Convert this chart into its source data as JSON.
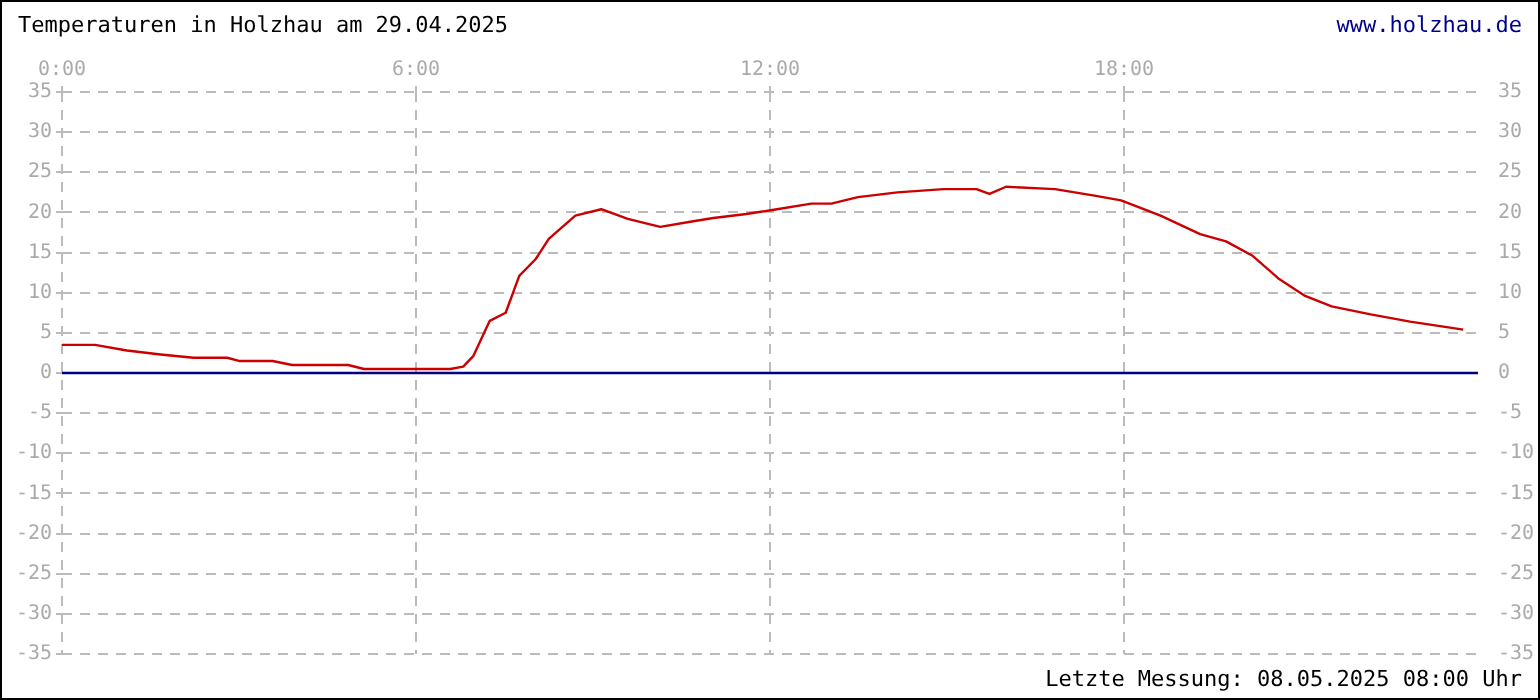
{
  "chart_data": {
    "type": "line",
    "title": "Temperaturen in Holzhau am 29.04.2025",
    "annotations": [
      "www.holzhau.de",
      "Letzte Messung: 08.05.2025 08:00 Uhr"
    ],
    "x": [
      0,
      0.56,
      1.1,
      1.67,
      2.23,
      2.8,
      3.0,
      3.57,
      3.9,
      4.85,
      5.12,
      6.58,
      6.8,
      6.97,
      7.25,
      7.52,
      7.75,
      8.03,
      8.25,
      8.7,
      9.14,
      9.59,
      10.14,
      10.7,
      11.04,
      11.6,
      12.04,
      12.7,
      13.04,
      13.49,
      14.16,
      14.94,
      15.5,
      15.72,
      16.0,
      16.83,
      17.5,
      17.95,
      18.62,
      19.29,
      19.73,
      20.18,
      20.63,
      21.07,
      21.52,
      22.18,
      22.85,
      23.3,
      23.75
    ],
    "series": [
      {
        "color": "#cc0000",
        "values": [
          3.5,
          3.5,
          2.8,
          2.3,
          1.9,
          1.9,
          1.5,
          1.5,
          1.0,
          1.0,
          0.5,
          0.5,
          0.8,
          2.1,
          6.5,
          7.5,
          12.1,
          14.2,
          16.7,
          19.6,
          20.4,
          19.2,
          18.2,
          18.9,
          19.3,
          19.8,
          20.3,
          21.1,
          21.1,
          21.9,
          22.5,
          22.9,
          22.9,
          22.3,
          23.2,
          22.9,
          22.1,
          21.5,
          19.6,
          17.3,
          16.4,
          14.6,
          11.7,
          9.6,
          8.3,
          7.3,
          6.4,
          5.9,
          5.4
        ]
      }
    ],
    "xlim": [
      0,
      24
    ],
    "xticks": [
      {
        "value": 0,
        "label": "0:00"
      },
      {
        "value": 6,
        "label": "6:00"
      },
      {
        "value": 12,
        "label": "12:00"
      },
      {
        "value": 18,
        "label": "18:00"
      }
    ],
    "ylim": [
      -35,
      35
    ],
    "yticks": [
      -35,
      -30,
      -25,
      -20,
      -15,
      -10,
      -5,
      0,
      5,
      10,
      15,
      20,
      25,
      30,
      35
    ],
    "y2lim": [
      -35,
      35
    ],
    "y2ticks": [
      -35,
      -30,
      -25,
      -20,
      -15,
      -10,
      -5,
      0,
      5,
      10,
      15,
      20,
      25,
      30,
      35
    ],
    "ref_lines": [
      {
        "axis": "y",
        "value": 0,
        "color": "#000080"
      }
    ],
    "grid": true,
    "legend": false,
    "marker": "none",
    "line_style": "solid"
  }
}
